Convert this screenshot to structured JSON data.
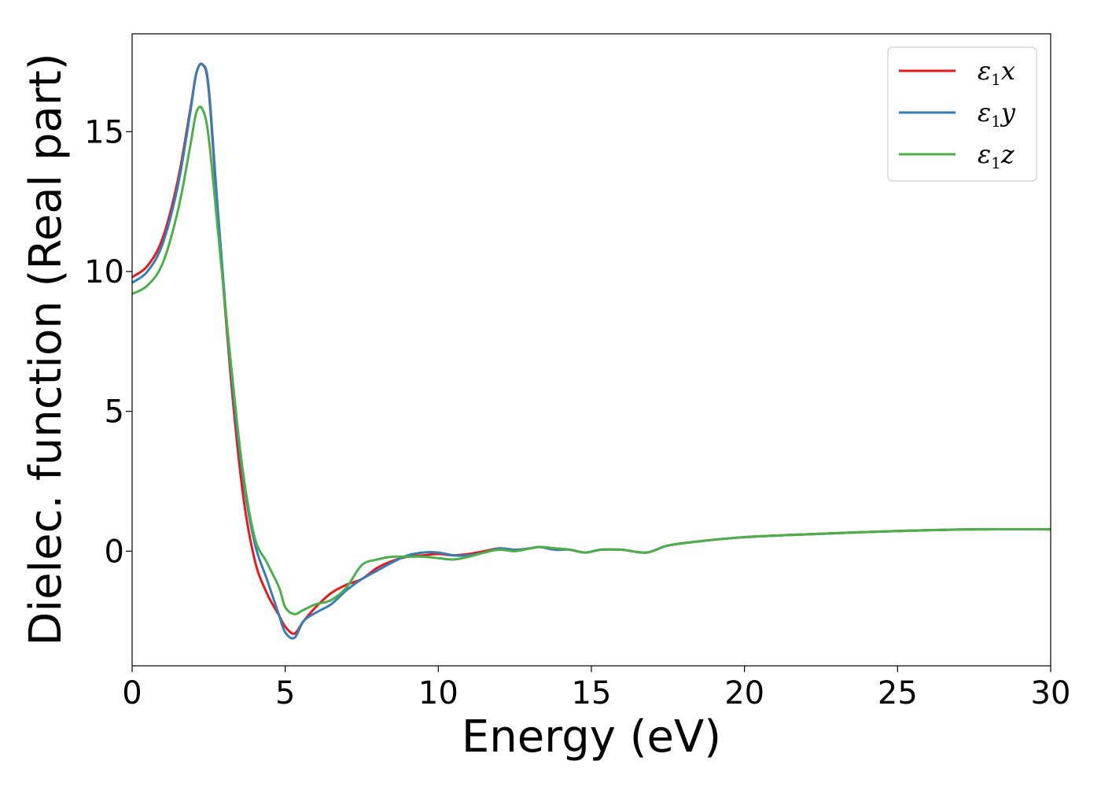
{
  "chart_data": {
    "type": "line",
    "title": "",
    "xlabel": "Energy (eV)",
    "ylabel": "Dielec. function (Real part)",
    "xlim": [
      0,
      30
    ],
    "ylim": [
      -4.1,
      18.5
    ],
    "xticks": [
      0,
      5,
      10,
      15,
      20,
      25,
      30
    ],
    "xtick_labels": [
      "0",
      "5",
      "10",
      "15",
      "20",
      "25",
      "30"
    ],
    "yticks": [
      0,
      5,
      10,
      15
    ],
    "ytick_labels": [
      "0",
      "5",
      "10",
      "15"
    ],
    "grid": false,
    "legend_position": "top-right",
    "series": [
      {
        "name": "ε1x",
        "symbol": "ε",
        "subscript": "1",
        "suffix": "x",
        "color": "#e41a1c",
        "x": [
          0,
          0.5,
          1.0,
          1.5,
          1.9,
          2.1,
          2.3,
          2.5,
          2.8,
          3.2,
          3.6,
          4.0,
          4.4,
          4.8,
          5.0,
          5.3,
          5.6,
          6.0,
          6.5,
          7.0,
          7.5,
          8.0,
          8.5,
          9.0,
          9.5,
          10.0,
          10.5,
          11.0,
          11.5,
          12.0,
          12.5,
          13.0,
          13.3,
          13.8,
          14.3,
          14.8,
          15.3,
          16.0,
          16.8,
          17.5,
          18.5,
          20.0,
          22.0,
          25.0,
          27.5,
          30.0
        ],
        "y": [
          9.8,
          10.2,
          11.2,
          13.3,
          15.8,
          17.1,
          17.4,
          16.5,
          12.0,
          6.5,
          2.2,
          -0.3,
          -1.5,
          -2.3,
          -2.7,
          -2.95,
          -2.5,
          -2.0,
          -1.5,
          -1.2,
          -1.0,
          -0.6,
          -0.35,
          -0.2,
          -0.15,
          -0.1,
          -0.15,
          -0.1,
          0.0,
          0.1,
          0.05,
          0.1,
          0.15,
          0.1,
          0.05,
          -0.05,
          0.05,
          0.05,
          -0.05,
          0.2,
          0.35,
          0.5,
          0.6,
          0.72,
          0.78,
          0.78
        ]
      },
      {
        "name": "ε1y",
        "symbol": "ε",
        "subscript": "1",
        "suffix": "y",
        "color": "#377eb8",
        "x": [
          0,
          0.5,
          1.0,
          1.5,
          1.9,
          2.1,
          2.3,
          2.5,
          2.8,
          3.2,
          3.6,
          4.0,
          4.4,
          4.8,
          5.0,
          5.3,
          5.6,
          6.0,
          6.5,
          7.0,
          7.5,
          8.0,
          8.5,
          9.0,
          9.5,
          10.0,
          10.5,
          11.0,
          11.5,
          12.0,
          12.5,
          13.0,
          13.3,
          13.8,
          14.3,
          14.8,
          15.3,
          16.0,
          16.8,
          17.5,
          18.5,
          20.0,
          22.0,
          25.0,
          27.5,
          30.0
        ],
        "y": [
          9.6,
          10.0,
          11.0,
          13.1,
          15.7,
          17.1,
          17.4,
          16.6,
          12.2,
          6.8,
          2.8,
          0.3,
          -1.0,
          -2.3,
          -2.9,
          -3.1,
          -2.5,
          -2.2,
          -1.9,
          -1.4,
          -1.0,
          -0.7,
          -0.4,
          -0.15,
          -0.05,
          -0.05,
          -0.15,
          -0.15,
          -0.05,
          0.1,
          0.05,
          0.1,
          0.15,
          0.05,
          0.05,
          -0.05,
          0.05,
          0.05,
          -0.05,
          0.2,
          0.35,
          0.5,
          0.6,
          0.72,
          0.78,
          0.78
        ]
      },
      {
        "name": "ε1z",
        "symbol": "ε",
        "subscript": "1",
        "suffix": "z",
        "color": "#4daf4a",
        "x": [
          0,
          0.5,
          1.0,
          1.5,
          1.9,
          2.1,
          2.3,
          2.5,
          2.8,
          3.2,
          3.6,
          4.0,
          4.4,
          4.8,
          5.0,
          5.3,
          5.6,
          6.0,
          6.5,
          7.0,
          7.5,
          8.0,
          8.5,
          9.0,
          9.5,
          10.0,
          10.5,
          11.0,
          11.5,
          12.0,
          12.5,
          13.0,
          13.3,
          13.8,
          14.3,
          14.8,
          15.3,
          16.0,
          16.8,
          17.5,
          18.5,
          20.0,
          22.0,
          25.0,
          27.5,
          30.0
        ],
        "y": [
          9.2,
          9.5,
          10.3,
          12.2,
          14.5,
          15.7,
          15.8,
          14.8,
          11.5,
          7.0,
          3.0,
          0.5,
          -0.4,
          -1.3,
          -2.0,
          -2.25,
          -2.1,
          -1.9,
          -1.75,
          -1.3,
          -0.5,
          -0.3,
          -0.2,
          -0.2,
          -0.2,
          -0.25,
          -0.3,
          -0.2,
          -0.05,
          0.05,
          0.0,
          0.1,
          0.15,
          0.1,
          0.05,
          -0.05,
          0.05,
          0.05,
          -0.05,
          0.2,
          0.35,
          0.5,
          0.6,
          0.72,
          0.78,
          0.78
        ]
      }
    ]
  }
}
